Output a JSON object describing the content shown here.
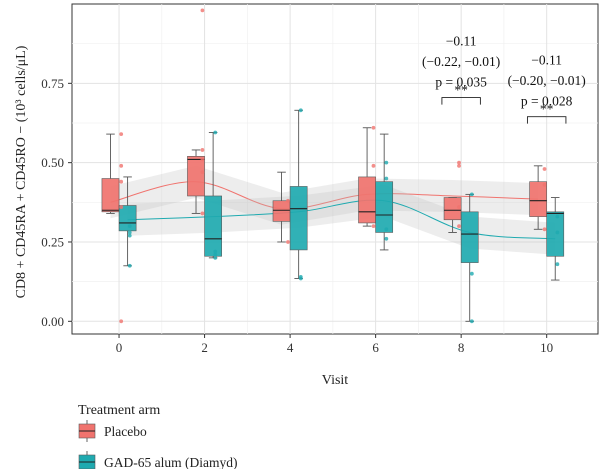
{
  "chart_data": {
    "type": "box",
    "ylabel": "CD8 + CD45RA + CD45RO − (10³ cells/μL)",
    "xlabel": "Visit",
    "xlim": [
      -1.1,
      11.2
    ],
    "ylim": [
      -0.04,
      1.0
    ],
    "x_ticks": [
      0,
      2,
      4,
      6,
      8,
      10
    ],
    "y_ticks": [
      0.0,
      0.25,
      0.5,
      0.75
    ],
    "y_tick_labels": [
      "0.00",
      "0.25",
      "0.50",
      "0.75"
    ],
    "grid": true,
    "legend": {
      "title": "Treatment arm",
      "position": "bottom"
    },
    "series": [
      {
        "name": "Placebo",
        "color": "#F0736E",
        "boxes": [
          {
            "visit": 0,
            "min": 0.34,
            "q1": 0.345,
            "median": 0.35,
            "q3": 0.45,
            "max": 0.59
          },
          {
            "visit": 2,
            "min": 0.34,
            "q1": 0.395,
            "median": 0.51,
            "q3": 0.52,
            "max": 0.54
          },
          {
            "visit": 4,
            "min": 0.25,
            "q1": 0.315,
            "median": 0.35,
            "q3": 0.38,
            "max": 0.47
          },
          {
            "visit": 6,
            "min": 0.3,
            "q1": 0.31,
            "median": 0.345,
            "q3": 0.455,
            "max": 0.61
          },
          {
            "visit": 8,
            "min": 0.28,
            "q1": 0.32,
            "median": 0.35,
            "q3": 0.39,
            "max": 0.39
          },
          {
            "visit": 10,
            "min": 0.29,
            "q1": 0.33,
            "median": 0.38,
            "q3": 0.44,
            "max": 0.49
          }
        ],
        "trend": [
          [
            -0.2,
            0.375
          ],
          [
            1.8,
            0.44
          ],
          [
            3.8,
            0.355
          ],
          [
            5.8,
            0.4
          ],
          [
            7.8,
            0.395
          ],
          [
            9.8,
            0.385
          ]
        ],
        "points": [
          [
            0.05,
            0.0
          ],
          [
            0.05,
            0.59
          ],
          [
            0.05,
            0.49
          ],
          [
            0.05,
            0.44
          ],
          [
            0.05,
            0.36
          ],
          [
            1.95,
            0.98
          ],
          [
            1.95,
            0.54
          ],
          [
            1.95,
            0.51
          ],
          [
            1.95,
            0.34
          ],
          [
            1.95,
            0.47
          ],
          [
            3.95,
            0.38
          ],
          [
            3.95,
            0.25
          ],
          [
            5.95,
            0.61
          ],
          [
            5.95,
            0.49
          ],
          [
            5.95,
            0.3
          ],
          [
            7.95,
            0.5
          ],
          [
            7.95,
            0.49
          ],
          [
            7.95,
            0.36
          ],
          [
            7.95,
            0.3
          ],
          [
            9.95,
            0.48
          ],
          [
            9.95,
            0.29
          ],
          [
            9.95,
            0.43
          ]
        ]
      },
      {
        "name": "GAD-65 alum (Diamyd)",
        "color": "#1FAAB0",
        "boxes": [
          {
            "visit": 0,
            "min": 0.175,
            "q1": 0.285,
            "median": 0.31,
            "q3": 0.365,
            "max": 0.455
          },
          {
            "visit": 2,
            "min": 0.2,
            "q1": 0.205,
            "median": 0.26,
            "q3": 0.395,
            "max": 0.595
          },
          {
            "visit": 4,
            "min": 0.135,
            "q1": 0.225,
            "median": 0.355,
            "q3": 0.425,
            "max": 0.665
          },
          {
            "visit": 6,
            "min": 0.225,
            "q1": 0.28,
            "median": 0.335,
            "q3": 0.44,
            "max": 0.59
          },
          {
            "visit": 8,
            "min": 0.0,
            "q1": 0.185,
            "median": 0.275,
            "q3": 0.345,
            "max": 0.4
          },
          {
            "visit": 10,
            "min": 0.13,
            "q1": 0.205,
            "median": 0.34,
            "q3": 0.345,
            "max": 0.39
          }
        ],
        "trend": [
          [
            0.2,
            0.32
          ],
          [
            2.2,
            0.33
          ],
          [
            4.2,
            0.345
          ],
          [
            6.2,
            0.38
          ],
          [
            8.2,
            0.28
          ],
          [
            10.2,
            0.26
          ]
        ],
        "points": [
          [
            0.25,
            0.175
          ],
          [
            0.25,
            0.27
          ],
          [
            0.25,
            0.3
          ],
          [
            0.25,
            0.28
          ],
          [
            2.25,
            0.595
          ],
          [
            2.25,
            0.21
          ],
          [
            2.25,
            0.2
          ],
          [
            2.25,
            0.22
          ],
          [
            4.25,
            0.665
          ],
          [
            4.25,
            0.135
          ],
          [
            4.25,
            0.14
          ],
          [
            6.25,
            0.5
          ],
          [
            6.25,
            0.45
          ],
          [
            6.25,
            0.29
          ],
          [
            6.25,
            0.26
          ],
          [
            8.25,
            0.0
          ],
          [
            8.25,
            0.15
          ],
          [
            8.25,
            0.4
          ],
          [
            10.25,
            0.18
          ],
          [
            10.25,
            0.28
          ],
          [
            10.25,
            0.33
          ]
        ]
      }
    ],
    "annotations": [
      {
        "x": 8,
        "lines": [
          "−0.11",
          "(−0.22, −0.01)",
          "p = 0.035"
        ],
        "sig": "**",
        "bracket": [
          7.55,
          8.45
        ],
        "bracket_y": 0.705
      },
      {
        "x": 10,
        "lines": [
          "−0.11",
          "(−0.20, −0.01)",
          "p = 0.028"
        ],
        "sig": "**",
        "bracket": [
          9.55,
          10.45
        ],
        "bracket_y": 0.645
      }
    ]
  }
}
